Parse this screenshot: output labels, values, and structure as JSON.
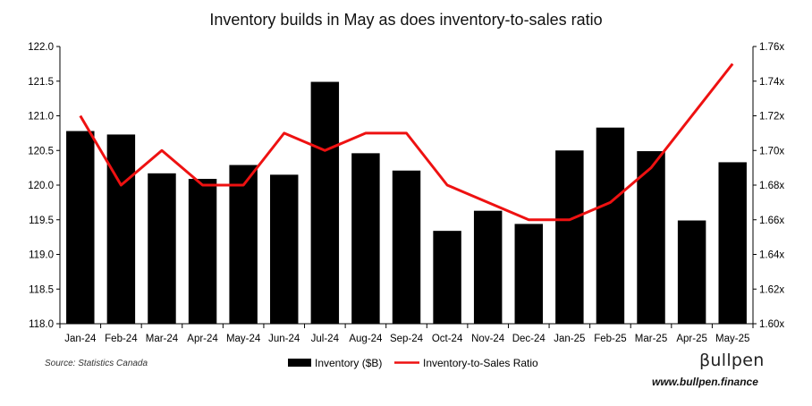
{
  "chart_data": {
    "type": "bar",
    "title": "Inventory builds in May as does inventory-to-sales ratio",
    "categories": [
      "Jan-24",
      "Feb-24",
      "Mar-24",
      "Apr-24",
      "May-24",
      "Jun-24",
      "Jul-24",
      "Aug-24",
      "Sep-24",
      "Oct-24",
      "Nov-24",
      "Dec-24",
      "Jan-25",
      "Feb-25",
      "Mar-25",
      "Apr-25",
      "May-25"
    ],
    "series": [
      {
        "name": "Inventory ($B)",
        "type": "bar",
        "axis": "left",
        "color": "#000000",
        "values": [
          120.78,
          120.73,
          120.17,
          120.09,
          120.29,
          120.15,
          121.49,
          120.46,
          120.21,
          119.34,
          119.63,
          119.44,
          120.5,
          120.83,
          120.49,
          119.49,
          120.33
        ]
      },
      {
        "name": "Inventory-to-Sales Ratio",
        "type": "line",
        "axis": "right",
        "color": "#ee1111",
        "values": [
          1.72,
          1.68,
          1.7,
          1.68,
          1.68,
          1.71,
          1.7,
          1.71,
          1.71,
          1.68,
          1.67,
          1.66,
          1.66,
          1.67,
          1.69,
          1.72,
          1.75
        ]
      }
    ],
    "ylim_left": [
      118.0,
      122.0
    ],
    "yticks_left": [
      "118.0",
      "118.5",
      "119.0",
      "119.5",
      "120.0",
      "120.5",
      "121.0",
      "121.5",
      "122.0"
    ],
    "ylim_right": [
      1.6,
      1.76
    ],
    "yticks_right": [
      "1.60x",
      "1.62x",
      "1.64x",
      "1.66x",
      "1.68x",
      "1.70x",
      "1.72x",
      "1.74x",
      "1.76x"
    ],
    "xlabel": "",
    "ylabel": "",
    "grid": false,
    "legend_position": "bottom"
  },
  "footer": {
    "source": "Source: Statistics Canada",
    "brand": "βullpen",
    "url": "www.bullpen.finance"
  }
}
